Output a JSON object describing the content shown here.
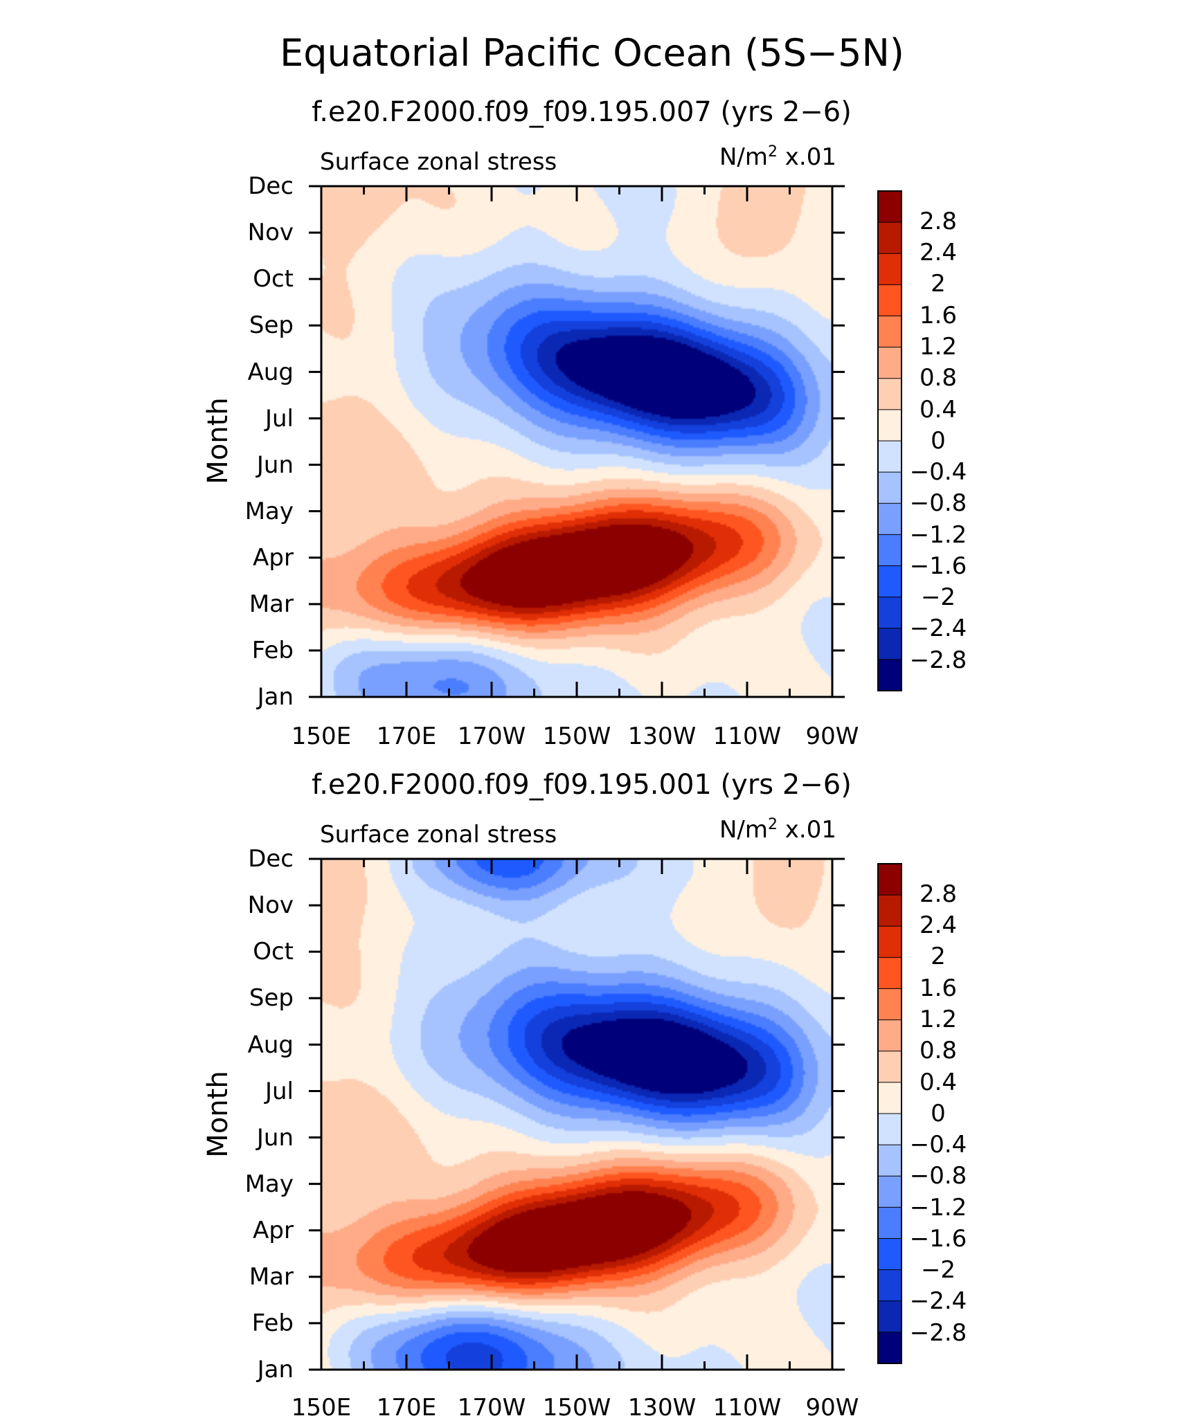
{
  "figure": {
    "title": "Equatorial Pacific Ocean (5S−5N)"
  },
  "chart_data": [
    {
      "type": "heatmap",
      "title": "f.e20.F2000.f09_f09.195.007 (yrs 2−6)",
      "left_label": "Surface zonal stress",
      "units_base": "N/m",
      "units_exp": "2",
      "units_scale": " x.01",
      "ylabel": "Month",
      "x_tick_labels": [
        "150E",
        "170E",
        "170W",
        "150W",
        "130W",
        "110W",
        "90W"
      ],
      "y_tick_labels": [
        "Jan",
        "Feb",
        "Mar",
        "Apr",
        "May",
        "Jun",
        "Jul",
        "Aug",
        "Sep",
        "Oct",
        "Nov",
        "Dec"
      ],
      "colorbar_labels": [
        "2.8",
        "2.4",
        "2",
        "1.6",
        "1.2",
        "0.8",
        "0.4",
        "0",
        "−0.4",
        "−0.8",
        "−1.2",
        "−1.6",
        "−2",
        "−2.4",
        "−2.8"
      ],
      "xlim": [
        150,
        270
      ],
      "ylim": [
        1,
        12
      ],
      "zlim": [
        -3.2,
        3.2
      ],
      "levels": [
        -2.8,
        -2.4,
        -2.0,
        -1.6,
        -1.2,
        -0.8,
        -0.4,
        0.0,
        0.4,
        0.8,
        1.2,
        1.6,
        2.0,
        2.4,
        2.8
      ],
      "features": [
        {
          "kind": "background",
          "x": 150,
          "y": 9,
          "value": 0.55
        },
        {
          "kind": "positive-core",
          "x": 207,
          "y": 3.6,
          "value": 3.2
        },
        {
          "kind": "negative-core",
          "x": 245,
          "y": 7.0,
          "value": -3.0
        },
        {
          "kind": "negative-core",
          "x": 202,
          "y": 9.2,
          "value": -2.7
        },
        {
          "kind": "negative-patch",
          "x": 170,
          "y": 1.3,
          "value": -1.6
        },
        {
          "kind": "positive-patch",
          "x": 254,
          "y": 11.5,
          "value": 1.1
        }
      ]
    },
    {
      "type": "heatmap",
      "title": "f.e20.F2000.f09_f09.195.001 (yrs 2−6)",
      "left_label": "Surface zonal stress",
      "units_base": "N/m",
      "units_exp": "2",
      "units_scale": " x.01",
      "ylabel": "Month",
      "x_tick_labels": [
        "150E",
        "170E",
        "170W",
        "150W",
        "130W",
        "110W",
        "90W"
      ],
      "y_tick_labels": [
        "Jan",
        "Feb",
        "Mar",
        "Apr",
        "May",
        "Jun",
        "Jul",
        "Aug",
        "Sep",
        "Oct",
        "Nov",
        "Dec"
      ],
      "colorbar_labels": [
        "2.8",
        "2.4",
        "2",
        "1.6",
        "1.2",
        "0.8",
        "0.4",
        "0",
        "−0.4",
        "−0.8",
        "−1.2",
        "−1.6",
        "−2",
        "−2.4",
        "−2.8"
      ],
      "xlim": [
        150,
        270
      ],
      "ylim": [
        1,
        12
      ],
      "zlim": [
        -3.2,
        3.2
      ],
      "levels": [
        -2.8,
        -2.4,
        -2.0,
        -1.6,
        -1.2,
        -0.8,
        -0.4,
        0.0,
        0.4,
        0.8,
        1.2,
        1.6,
        2.0,
        2.4,
        2.8
      ],
      "features": [
        {
          "kind": "background",
          "x": 150,
          "y": 9,
          "value": 0.5
        },
        {
          "kind": "positive-core",
          "x": 208,
          "y": 3.9,
          "value": 3.1
        },
        {
          "kind": "negative-core",
          "x": 247,
          "y": 7.0,
          "value": -2.8
        },
        {
          "kind": "negative-core",
          "x": 212,
          "y": 8.6,
          "value": -2.5
        },
        {
          "kind": "negative-patch",
          "x": 185,
          "y": 1.2,
          "value": -2.4
        },
        {
          "kind": "negative-patch",
          "x": 190,
          "y": 11.9,
          "value": -2.3
        },
        {
          "kind": "positive-patch",
          "x": 260,
          "y": 11.6,
          "value": 1.0
        }
      ]
    }
  ],
  "colors": {
    "palette": [
      "#00007a",
      "#0a28b4",
      "#1440dc",
      "#1e5aff",
      "#4a7dff",
      "#7aa0ff",
      "#a6c2ff",
      "#d0e2ff",
      "#fff0e0",
      "#ffcfb4",
      "#ffab88",
      "#ff8250",
      "#ff5520",
      "#e02e06",
      "#b81a00",
      "#8c0000"
    ]
  }
}
